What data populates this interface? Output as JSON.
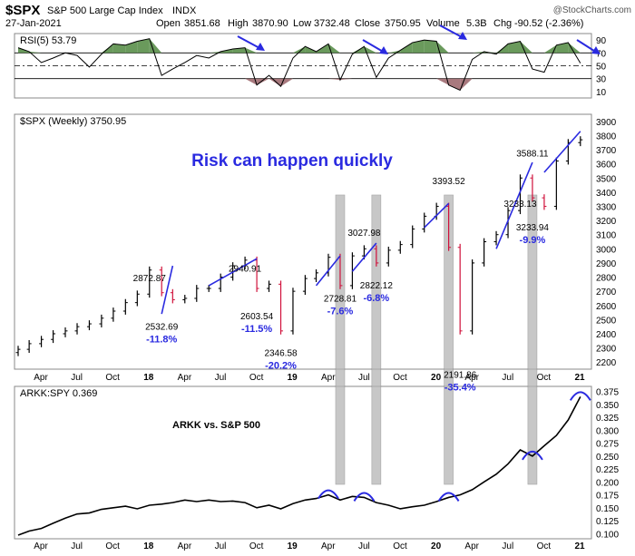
{
  "header": {
    "symbol": "$SPX",
    "name": "S&P 500 Large Cap Index",
    "exchange": "INDX",
    "date": "27-Jan-2021",
    "open_label": "Open",
    "open": "3851.68",
    "high_label": "High",
    "high": "3870.90",
    "low_label": "Low",
    "low": "3732.48",
    "close_label": "Close",
    "close": "3750.95",
    "volume_label": "Volume",
    "volume": "5.3B",
    "chg_label": "Chg",
    "chg": "-90.52 (-2.36%)",
    "watermark": "@StockCharts.com"
  },
  "colors": {
    "up": "#000000",
    "down": "#d0103a",
    "rsi_fill_high": "#5a8f4a",
    "rsi_fill_low": "#9e6a70",
    "annotation": "#2a2ae0",
    "shade": "#b5b5b5"
  },
  "chart_data": [
    {
      "type": "line",
      "panel": "rsi",
      "label": "RSI(5) 53.79",
      "yticks": [
        10,
        30,
        50,
        70,
        90
      ],
      "ylim": [
        0,
        100
      ],
      "reference_lines": [
        30,
        50,
        70
      ],
      "x": [
        "2017-02",
        "2017-03",
        "2017-04",
        "2017-05",
        "2017-06",
        "2017-07",
        "2017-08",
        "2017-09",
        "2017-10",
        "2017-11",
        "2017-12",
        "2018-01",
        "2018-02",
        "2018-03",
        "2018-04",
        "2018-05",
        "2018-06",
        "2018-07",
        "2018-08",
        "2018-09",
        "2018-10",
        "2018-11",
        "2018-12",
        "2019-01",
        "2019-02",
        "2019-03",
        "2019-04",
        "2019-05",
        "2019-06",
        "2019-07",
        "2019-08",
        "2019-09",
        "2019-10",
        "2019-11",
        "2019-12",
        "2020-01",
        "2020-02",
        "2020-03",
        "2020-04",
        "2020-05",
        "2020-06",
        "2020-07",
        "2020-08",
        "2020-09",
        "2020-10",
        "2020-11",
        "2020-12",
        "2021-01"
      ],
      "values": [
        78,
        72,
        55,
        62,
        70,
        66,
        48,
        68,
        84,
        82,
        88,
        92,
        35,
        45,
        55,
        66,
        62,
        72,
        76,
        78,
        20,
        35,
        18,
        62,
        80,
        72,
        84,
        28,
        68,
        80,
        32,
        62,
        74,
        86,
        90,
        88,
        20,
        12,
        60,
        72,
        68,
        84,
        88,
        45,
        40,
        82,
        86,
        54
      ]
    },
    {
      "type": "ohlc",
      "panel": "price",
      "label": "$SPX (Weekly) 3750.95",
      "title": "Risk can happen quickly",
      "ylim": [
        2150,
        3950
      ],
      "yticks": [
        2200,
        2300,
        2400,
        2500,
        2600,
        2700,
        2800,
        2900,
        3000,
        3100,
        3200,
        3300,
        3400,
        3500,
        3600,
        3700,
        3800,
        3900
      ],
      "xticks": [
        "Apr",
        "Jul",
        "Oct",
        "18",
        "Apr",
        "Jul",
        "Oct",
        "19",
        "Apr",
        "Jul",
        "Oct",
        "20",
        "Apr",
        "Jul",
        "Oct",
        "21"
      ],
      "x": [
        "2017-02",
        "2017-03",
        "2017-04",
        "2017-05",
        "2017-06",
        "2017-07",
        "2017-08",
        "2017-09",
        "2017-10",
        "2017-11",
        "2017-12",
        "2018-01",
        "2018-02",
        "2018-03",
        "2018-04",
        "2018-05",
        "2018-06",
        "2018-07",
        "2018-08",
        "2018-09",
        "2018-10",
        "2018-11",
        "2018-12",
        "2019-01",
        "2019-02",
        "2019-03",
        "2019-04",
        "2019-05",
        "2019-06",
        "2019-07",
        "2019-08",
        "2019-09",
        "2019-10",
        "2019-11",
        "2019-12",
        "2020-01",
        "2020-02",
        "2020-03",
        "2020-04",
        "2020-05",
        "2020-06",
        "2020-07",
        "2020-08",
        "2020-09",
        "2020-10",
        "2020-11",
        "2020-12",
        "2021-01"
      ],
      "values": [
        2290,
        2330,
        2360,
        2400,
        2420,
        2450,
        2470,
        2510,
        2560,
        2620,
        2680,
        2850,
        2690,
        2640,
        2650,
        2720,
        2720,
        2800,
        2880,
        2920,
        2720,
        2750,
        2420,
        2700,
        2790,
        2830,
        2940,
        2740,
        2950,
        3000,
        2900,
        2990,
        3030,
        3140,
        3230,
        3300,
        3010,
        2420,
        2900,
        3050,
        3100,
        3270,
        3500,
        3360,
        3300,
        3620,
        3750,
        3770
      ],
      "annotations": [
        {
          "x": "2018-01",
          "y": 2872.87,
          "text": "2872.87"
        },
        {
          "x": "2018-02",
          "y": 2532.69,
          "text": "2532.69"
        },
        {
          "x": "2018-02",
          "y": 2532.69,
          "text": "-11.8%"
        },
        {
          "x": "2018-09",
          "y": 2940.91,
          "text": "2940.91"
        },
        {
          "x": "2018-10",
          "y": 2603.54,
          "text": "2603.54"
        },
        {
          "x": "2018-10",
          "y": 2603.54,
          "text": "-11.5%"
        },
        {
          "x": "2018-12",
          "y": 2346.58,
          "text": "2346.58"
        },
        {
          "x": "2018-12",
          "y": 2346.58,
          "text": "-20.2%"
        },
        {
          "x": "2019-05",
          "y": 2728.81,
          "text": "2728.81"
        },
        {
          "x": "2019-05",
          "y": 2728.81,
          "text": "-7.6%"
        },
        {
          "x": "2019-07",
          "y": 3027.98,
          "text": "3027.98"
        },
        {
          "x": "2019-08",
          "y": 2822.12,
          "text": "2822.12"
        },
        {
          "x": "2019-08",
          "y": 2822.12,
          "text": "-6.8%"
        },
        {
          "x": "2020-02",
          "y": 3393.52,
          "text": "3393.52"
        },
        {
          "x": "2020-03",
          "y": 2191.86,
          "text": "2191.86"
        },
        {
          "x": "2020-03",
          "y": 2191.86,
          "text": "-35.4%"
        },
        {
          "x": "2020-08",
          "y": 3233.13,
          "text": "3233.13"
        },
        {
          "x": "2020-09",
          "y": 3588.11,
          "text": "3588.11"
        },
        {
          "x": "2020-09",
          "y": 3233.94,
          "text": "3233.94"
        },
        {
          "x": "2020-09",
          "y": 3233.94,
          "text": "-9.9%"
        }
      ],
      "trendlines": [
        {
          "from": [
            "2018-02",
            2540
          ],
          "to": [
            "2018-03",
            2880
          ]
        },
        {
          "from": [
            "2018-06",
            2740
          ],
          "to": [
            "2018-10",
            2930
          ]
        },
        {
          "from": [
            "2019-03",
            2740
          ],
          "to": [
            "2019-05",
            2950
          ]
        },
        {
          "from": [
            "2019-06",
            2840
          ],
          "to": [
            "2019-08",
            3040
          ]
        },
        {
          "from": [
            "2019-12",
            3150
          ],
          "to": [
            "2020-02",
            3320
          ]
        },
        {
          "from": [
            "2020-06",
            3000
          ],
          "to": [
            "2020-09",
            3610
          ]
        },
        {
          "from": [
            "2020-10",
            3540
          ],
          "to": [
            "2021-01",
            3830
          ]
        }
      ],
      "shaded_ranges": [
        [
          "2019-05",
          "2019-05"
        ],
        [
          "2019-08",
          "2019-08"
        ],
        [
          "2020-02",
          "2020-02"
        ],
        [
          "2020-09",
          "2020-09"
        ]
      ]
    },
    {
      "type": "line",
      "panel": "ratio",
      "label": "ARKK:SPY 0.369",
      "title": "ARKK vs. S&P 500",
      "ylim": [
        0.09,
        0.385
      ],
      "yticks": [
        0.1,
        0.125,
        0.15,
        0.175,
        0.2,
        0.225,
        0.25,
        0.275,
        0.3,
        0.325,
        0.35,
        0.375
      ],
      "xticks": [
        "Apr",
        "Jul",
        "Oct",
        "18",
        "Apr",
        "Jul",
        "Oct",
        "19",
        "Apr",
        "Jul",
        "Oct",
        "20",
        "Apr",
        "Jul",
        "Oct",
        "21"
      ],
      "x": [
        "2017-02",
        "2017-03",
        "2017-04",
        "2017-05",
        "2017-06",
        "2017-07",
        "2017-08",
        "2017-09",
        "2017-10",
        "2017-11",
        "2017-12",
        "2018-01",
        "2018-02",
        "2018-03",
        "2018-04",
        "2018-05",
        "2018-06",
        "2018-07",
        "2018-08",
        "2018-09",
        "2018-10",
        "2018-11",
        "2018-12",
        "2019-01",
        "2019-02",
        "2019-03",
        "2019-04",
        "2019-05",
        "2019-06",
        "2019-07",
        "2019-08",
        "2019-09",
        "2019-10",
        "2019-11",
        "2019-12",
        "2020-01",
        "2020-02",
        "2020-03",
        "2020-04",
        "2020-05",
        "2020-06",
        "2020-07",
        "2020-08",
        "2020-09",
        "2020-10",
        "2020-11",
        "2020-12",
        "2021-01"
      ],
      "values": [
        0.097,
        0.105,
        0.11,
        0.12,
        0.13,
        0.138,
        0.14,
        0.147,
        0.15,
        0.153,
        0.148,
        0.155,
        0.157,
        0.16,
        0.165,
        0.162,
        0.165,
        0.162,
        0.163,
        0.16,
        0.15,
        0.155,
        0.148,
        0.158,
        0.165,
        0.168,
        0.175,
        0.165,
        0.172,
        0.17,
        0.16,
        0.155,
        0.148,
        0.152,
        0.155,
        0.162,
        0.17,
        0.175,
        0.185,
        0.2,
        0.215,
        0.235,
        0.262,
        0.25,
        0.27,
        0.29,
        0.32,
        0.365
      ],
      "arcs": [
        "2019-04",
        "2019-07",
        "2020-02",
        "2020-09",
        "2021-01"
      ]
    }
  ]
}
